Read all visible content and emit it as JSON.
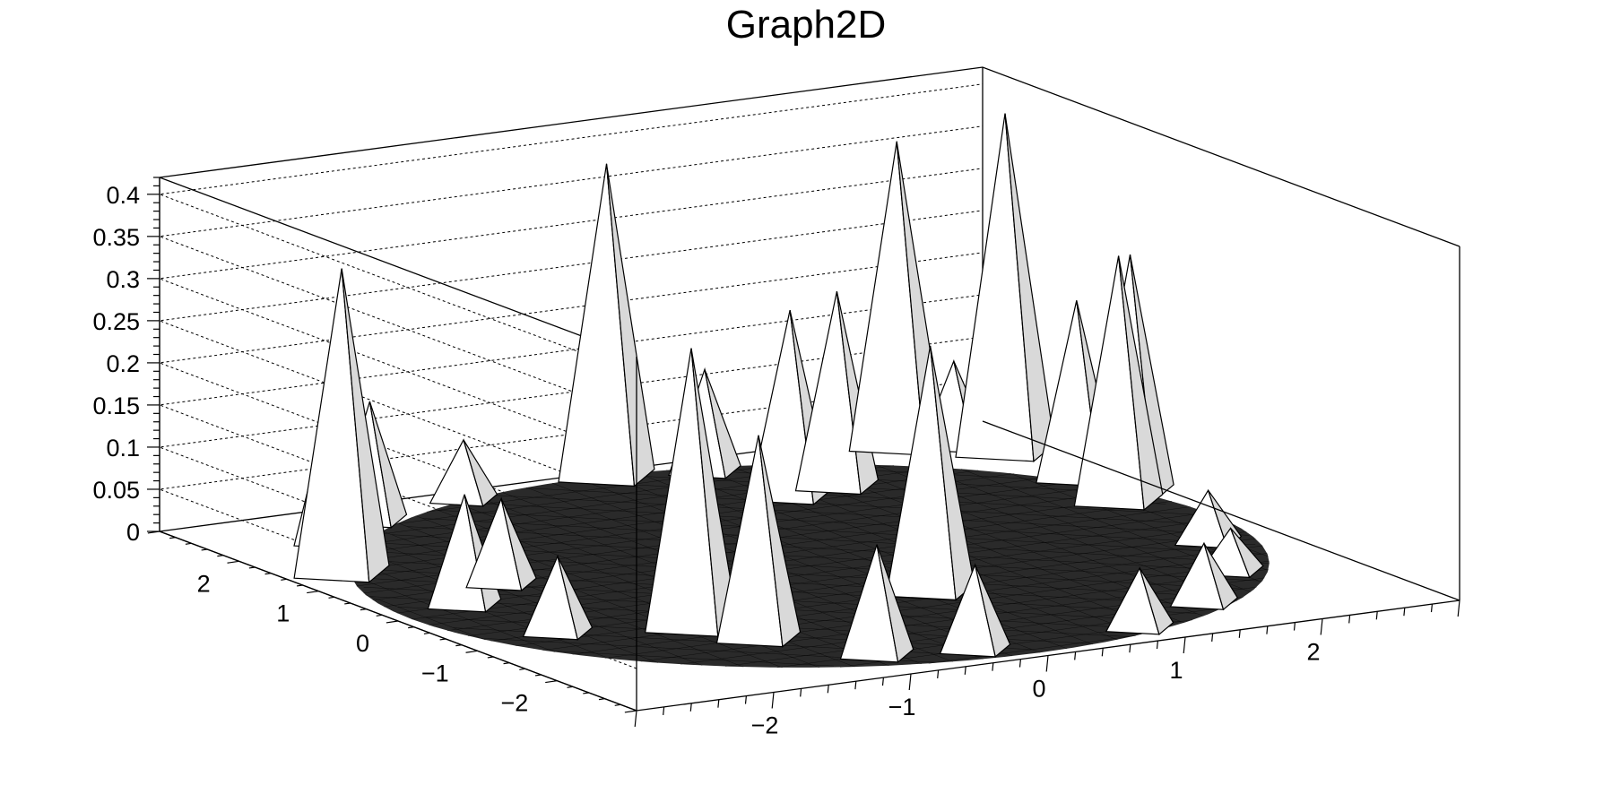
{
  "chart_data": {
    "type": "surface3d",
    "title": "Graph2D",
    "xlabel": "",
    "ylabel": "",
    "zlabel": "",
    "xlim": [
      -3,
      3
    ],
    "ylim": [
      -3,
      3
    ],
    "zlim": [
      0,
      0.42
    ],
    "x_ticks": [
      "−2",
      "−1",
      "0",
      "1",
      "2"
    ],
    "y_ticks": [
      "−2",
      "−1",
      "0",
      "1",
      "2"
    ],
    "z_ticks": [
      "0",
      "0.05",
      "0.1",
      "0.15",
      "0.2",
      "0.25",
      "0.3",
      "0.35",
      "0.4"
    ],
    "z_tick_values": [
      0,
      0.05,
      0.1,
      0.15,
      0.2,
      0.25,
      0.3,
      0.35,
      0.4
    ],
    "grid": true,
    "peaks": [
      {
        "x": -2.6,
        "y": 1.4,
        "z": 0.36
      },
      {
        "x": -2.2,
        "y": 2.2,
        "z": 0.18
      },
      {
        "x": -1.7,
        "y": 2.6,
        "z": 0.14
      },
      {
        "x": -0.9,
        "y": 2.8,
        "z": 0.07
      },
      {
        "x": -1.5,
        "y": -1.1,
        "z": 0.33
      },
      {
        "x": -1.3,
        "y": -1.6,
        "z": 0.24
      },
      {
        "x": 0.2,
        "y": 2.9,
        "z": 0.37
      },
      {
        "x": 0.8,
        "y": 2.7,
        "z": 0.12
      },
      {
        "x": 1.3,
        "y": 2.5,
        "z": 0.11
      },
      {
        "x": -0.3,
        "y": -2.6,
        "z": 0.1
      },
      {
        "x": 0.3,
        "y": -1.0,
        "z": 0.29
      },
      {
        "x": 0.9,
        "y": 1.8,
        "z": 0.22
      },
      {
        "x": 1.3,
        "y": 1.9,
        "z": 0.23
      },
      {
        "x": 2.2,
        "y": 2.7,
        "z": 0.36
      },
      {
        "x": 2.5,
        "y": 2.5,
        "z": 0.1
      },
      {
        "x": 2.7,
        "y": 2.2,
        "z": 0.4
      },
      {
        "x": 2.7,
        "y": 1.3,
        "z": 0.21
      },
      {
        "x": 2.6,
        "y": 0.6,
        "z": 0.29
      },
      {
        "x": 2.8,
        "y": 0.8,
        "z": 0.28
      },
      {
        "x": 2.5,
        "y": -0.7,
        "z": 0.06
      },
      {
        "x": 2.2,
        "y": -1.5,
        "z": 0.05
      },
      {
        "x": 0.9,
        "y": -2.6,
        "z": 0.07
      },
      {
        "x": -0.9,
        "y": -2.4,
        "z": 0.13
      },
      {
        "x": -2.3,
        "y": -0.8,
        "z": 0.09
      },
      {
        "x": -2.4,
        "y": 0.2,
        "z": 0.13
      },
      {
        "x": -1.9,
        "y": 0.6,
        "z": 0.1
      },
      {
        "x": 1.6,
        "y": -2.2,
        "z": 0.07
      }
    ]
  }
}
